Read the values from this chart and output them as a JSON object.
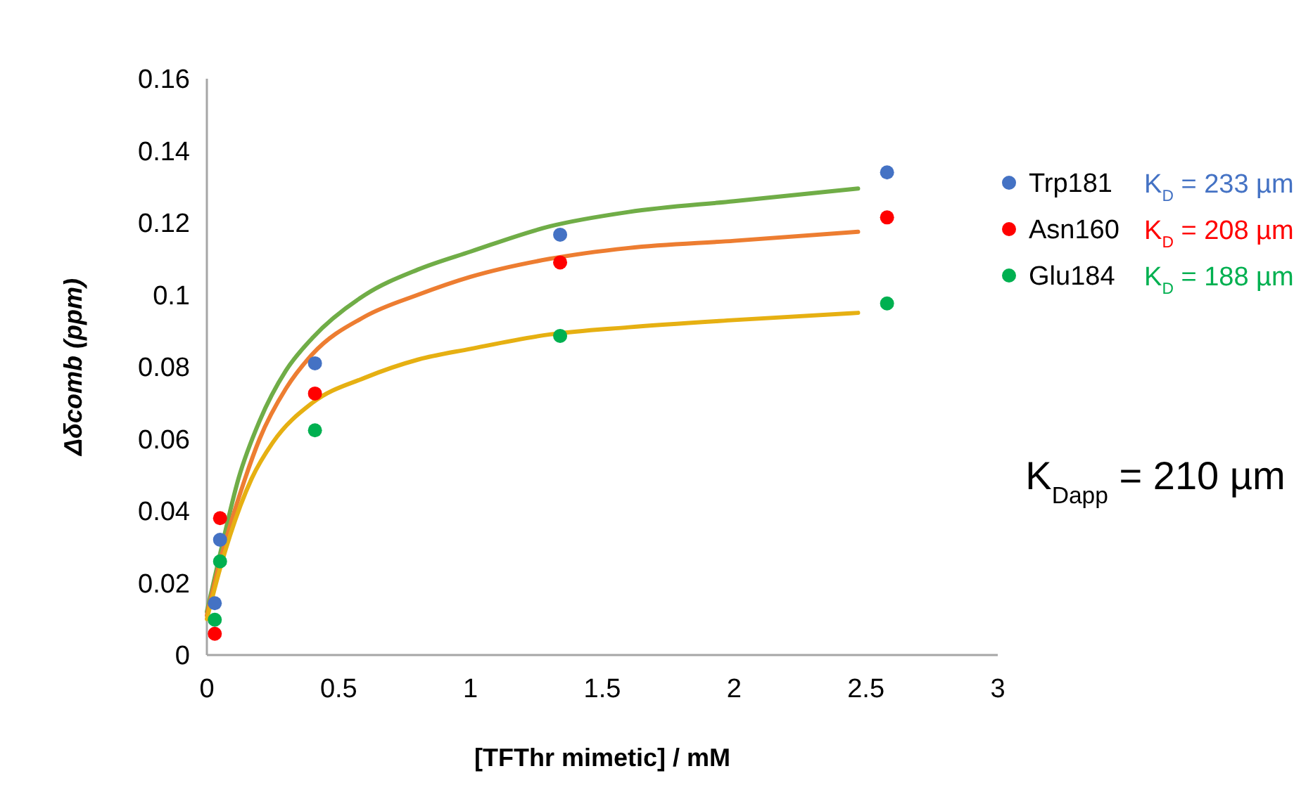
{
  "chart_data": {
    "type": "scatter",
    "xlabel": "[TFThr mimetic] / mM",
    "ylabel": "Δδcomb (ppm)",
    "xlim": [
      0,
      3
    ],
    "xticks": [
      0,
      0.5,
      1,
      1.5,
      2,
      2.5,
      3
    ],
    "ylim": [
      0,
      0.16
    ],
    "yticks": [
      0,
      0.02,
      0.04,
      0.06,
      0.08,
      0.1,
      0.12,
      0.14,
      0.16
    ],
    "grid": false,
    "legend": "right",
    "marker": "circle",
    "series": [
      {
        "name": "Trp181",
        "color": "#4472c4",
        "x": [
          0.03,
          0.05,
          0.41,
          1.34,
          2.58
        ],
        "values": [
          0.0144,
          0.032,
          0.081,
          0.1167,
          0.134
        ]
      },
      {
        "name": "Asn160",
        "color": "#ff0000",
        "x": [
          0.03,
          0.05,
          0.41,
          1.34,
          2.58
        ],
        "values": [
          0.0059,
          0.038,
          0.0726,
          0.109,
          0.1215
        ]
      },
      {
        "name": "Glu184",
        "color": "#00b050",
        "x": [
          0.03,
          0.05,
          0.41,
          1.34,
          2.58
        ],
        "values": [
          0.0098,
          0.026,
          0.0624,
          0.0886,
          0.0976
        ]
      },
      {
        "type": "line",
        "color": "#70ad47",
        "marker": "none",
        "x": [
          0,
          0.05,
          0.12,
          0.2,
          0.3,
          0.4,
          0.6,
          0.8,
          1.0,
          1.3,
          1.6,
          2.0,
          2.47
        ],
        "values": [
          0.012,
          0.028,
          0.049,
          0.065,
          0.079,
          0.088,
          0.1,
          0.107,
          0.112,
          0.119,
          0.123,
          0.126,
          0.1295
        ]
      },
      {
        "type": "line",
        "color": "#ed7d31",
        "marker": "none",
        "x": [
          0,
          0.05,
          0.145,
          0.2,
          0.3,
          0.4,
          0.6,
          0.8,
          1.0,
          1.3,
          1.6,
          2.0,
          2.47
        ],
        "values": [
          0.011,
          0.026,
          0.049,
          0.06,
          0.074,
          0.0835,
          0.094,
          0.1,
          0.105,
          0.11,
          0.113,
          0.115,
          0.1175
        ]
      },
      {
        "type": "line",
        "color": "#e6b012",
        "marker": "none",
        "x": [
          0,
          0.05,
          0.17,
          0.25,
          0.4,
          0.6,
          0.8,
          1.0,
          1.3,
          1.6,
          2.0,
          2.47
        ],
        "values": [
          0.01,
          0.024,
          0.049,
          0.059,
          0.07,
          0.077,
          0.082,
          0.085,
          0.089,
          0.091,
          0.093,
          0.095
        ]
      }
    ],
    "annotations": [
      "K$_{D}$ = 233 µm",
      "K$_{D}$ = 208 µm",
      "K$_{D}$ = 188 µm",
      "K$_{Dapp}$ = 210 µm"
    ]
  }
}
